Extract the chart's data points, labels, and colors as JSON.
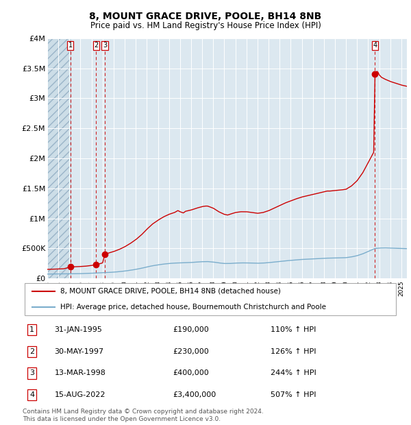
{
  "title": "8, MOUNT GRACE DRIVE, POOLE, BH14 8NB",
  "subtitle": "Price paid vs. HM Land Registry's House Price Index (HPI)",
  "table_rows": [
    {
      "label": "1",
      "date": "31-JAN-1995",
      "price": "£190,000",
      "pct": "110% ↑ HPI"
    },
    {
      "label": "2",
      "date": "30-MAY-1997",
      "price": "£230,000",
      "pct": "126% ↑ HPI"
    },
    {
      "label": "3",
      "date": "13-MAR-1998",
      "price": "£400,000",
      "pct": "244% ↑ HPI"
    },
    {
      "label": "4",
      "date": "15-AUG-2022",
      "price": "£3,400,000",
      "pct": "507% ↑ HPI"
    }
  ],
  "transactions": [
    {
      "year": 1995.083,
      "price": 190000,
      "label": "1"
    },
    {
      "year": 1997.414,
      "price": 230000,
      "label": "2"
    },
    {
      "year": 1998.2,
      "price": 400000,
      "label": "3"
    },
    {
      "year": 2022.62,
      "price": 3400000,
      "label": "4"
    }
  ],
  "property_label": "8, MOUNT GRACE DRIVE, POOLE, BH14 8NB (detached house)",
  "hpi_label": "HPI: Average price, detached house, Bournemouth Christchurch and Poole",
  "footer": "Contains HM Land Registry data © Crown copyright and database right 2024.\nThis data is licensed under the Open Government Licence v3.0.",
  "property_color": "#cc0000",
  "hpi_color": "#7aadcc",
  "bg_color": "#dce8f0",
  "hatch_region_end": 1995.083,
  "ylim": [
    0,
    4000000
  ],
  "ytick_vals": [
    0,
    500000,
    1000000,
    1500000,
    2000000,
    2500000,
    3000000,
    3500000,
    4000000
  ],
  "ytick_labels": [
    "£0",
    "£500K",
    "£1M",
    "£1.5M",
    "£2M",
    "£2.5M",
    "£3M",
    "£3.5M",
    "£4M"
  ],
  "xmin": 1993.0,
  "xmax": 2025.5,
  "hpi_keypoints": [
    [
      1993.0,
      72000
    ],
    [
      1993.5,
      73000
    ],
    [
      1994.0,
      74000
    ],
    [
      1994.5,
      75000
    ],
    [
      1995.0,
      76000
    ],
    [
      1995.5,
      77000
    ],
    [
      1996.0,
      79000
    ],
    [
      1996.5,
      82000
    ],
    [
      1997.0,
      86000
    ],
    [
      1997.5,
      90000
    ],
    [
      1998.0,
      93000
    ],
    [
      1998.5,
      98000
    ],
    [
      1999.0,
      104000
    ],
    [
      1999.5,
      112000
    ],
    [
      2000.0,
      122000
    ],
    [
      2000.5,
      135000
    ],
    [
      2001.0,
      150000
    ],
    [
      2001.5,
      168000
    ],
    [
      2002.0,
      190000
    ],
    [
      2002.5,
      210000
    ],
    [
      2003.0,
      225000
    ],
    [
      2003.5,
      238000
    ],
    [
      2004.0,
      248000
    ],
    [
      2004.5,
      255000
    ],
    [
      2005.0,
      258000
    ],
    [
      2005.5,
      260000
    ],
    [
      2006.0,
      265000
    ],
    [
      2006.5,
      272000
    ],
    [
      2007.0,
      278000
    ],
    [
      2007.5,
      280000
    ],
    [
      2008.0,
      272000
    ],
    [
      2008.5,
      258000
    ],
    [
      2009.0,
      248000
    ],
    [
      2009.5,
      248000
    ],
    [
      2010.0,
      255000
    ],
    [
      2010.5,
      258000
    ],
    [
      2011.0,
      258000
    ],
    [
      2011.5,
      255000
    ],
    [
      2012.0,
      252000
    ],
    [
      2012.5,
      255000
    ],
    [
      2013.0,
      262000
    ],
    [
      2013.5,
      272000
    ],
    [
      2014.0,
      282000
    ],
    [
      2014.5,
      292000
    ],
    [
      2015.0,
      300000
    ],
    [
      2015.5,
      308000
    ],
    [
      2016.0,
      315000
    ],
    [
      2016.5,
      320000
    ],
    [
      2017.0,
      325000
    ],
    [
      2017.5,
      330000
    ],
    [
      2018.0,
      335000
    ],
    [
      2018.5,
      338000
    ],
    [
      2019.0,
      340000
    ],
    [
      2019.5,
      342000
    ],
    [
      2020.0,
      345000
    ],
    [
      2020.5,
      358000
    ],
    [
      2021.0,
      378000
    ],
    [
      2021.5,
      408000
    ],
    [
      2022.0,
      448000
    ],
    [
      2022.5,
      488000
    ],
    [
      2022.62,
      498000
    ],
    [
      2023.0,
      505000
    ],
    [
      2023.5,
      508000
    ],
    [
      2024.0,
      505000
    ],
    [
      2024.5,
      502000
    ],
    [
      2025.0,
      498000
    ],
    [
      2025.5,
      495000
    ]
  ],
  "prop_keypoints_pre1995": [
    [
      1993.0,
      150000
    ],
    [
      1993.5,
      153000
    ],
    [
      1994.0,
      156000
    ],
    [
      1994.5,
      160000
    ],
    [
      1995.083,
      190000
    ]
  ],
  "prop_keypoints_1995_1997": [
    [
      1995.083,
      190000
    ],
    [
      1995.5,
      193000
    ],
    [
      1996.0,
      198000
    ],
    [
      1996.5,
      204000
    ],
    [
      1997.0,
      215000
    ],
    [
      1997.414,
      230000
    ]
  ],
  "prop_keypoints_1997_1998": [
    [
      1997.414,
      230000
    ],
    [
      1997.7,
      242000
    ],
    [
      1998.0,
      258000
    ],
    [
      1998.2,
      400000
    ]
  ],
  "prop_keypoints_1998_2022": [
    [
      1998.2,
      400000
    ],
    [
      1998.5,
      420000
    ],
    [
      1999.0,
      447000
    ],
    [
      1999.5,
      482000
    ],
    [
      2000.0,
      526000
    ],
    [
      2000.5,
      581000
    ],
    [
      2001.0,
      645000
    ],
    [
      2001.5,
      723000
    ],
    [
      2002.0,
      818000
    ],
    [
      2002.5,
      904000
    ],
    [
      2003.0,
      968000
    ],
    [
      2003.5,
      1024000
    ],
    [
      2004.0,
      1067000
    ],
    [
      2004.5,
      1097000
    ],
    [
      2004.8,
      1130000
    ],
    [
      2005.0,
      1110000
    ],
    [
      2005.3,
      1090000
    ],
    [
      2005.5,
      1118000
    ],
    [
      2006.0,
      1139000
    ],
    [
      2006.5,
      1170000
    ],
    [
      2007.0,
      1196000
    ],
    [
      2007.3,
      1205000
    ],
    [
      2007.5,
      1204000
    ],
    [
      2008.0,
      1170000
    ],
    [
      2008.5,
      1110000
    ],
    [
      2009.0,
      1067000
    ],
    [
      2009.3,
      1055000
    ],
    [
      2009.5,
      1068000
    ],
    [
      2010.0,
      1097000
    ],
    [
      2010.5,
      1110000
    ],
    [
      2011.0,
      1110000
    ],
    [
      2011.5,
      1097000
    ],
    [
      2012.0,
      1084000
    ],
    [
      2012.5,
      1097000
    ],
    [
      2013.0,
      1127000
    ],
    [
      2013.5,
      1170000
    ],
    [
      2014.0,
      1213000
    ],
    [
      2014.5,
      1256000
    ],
    [
      2015.0,
      1291000
    ],
    [
      2015.5,
      1325000
    ],
    [
      2016.0,
      1355000
    ],
    [
      2016.5,
      1377000
    ],
    [
      2017.0,
      1398000
    ],
    [
      2017.5,
      1420000
    ],
    [
      2018.0,
      1441000
    ],
    [
      2018.3,
      1455000
    ],
    [
      2018.5,
      1454000
    ],
    [
      2019.0,
      1463000
    ],
    [
      2019.5,
      1472000
    ],
    [
      2020.0,
      1484000
    ],
    [
      2020.5,
      1541000
    ],
    [
      2021.0,
      1627000
    ],
    [
      2021.5,
      1756000
    ],
    [
      2022.0,
      1928000
    ],
    [
      2022.5,
      2100000
    ],
    [
      2022.62,
      3400000
    ]
  ],
  "prop_keypoints_post2022": [
    [
      2022.62,
      3400000
    ],
    [
      2022.8,
      3450000
    ],
    [
      2022.9,
      3430000
    ],
    [
      2023.0,
      3390000
    ],
    [
      2023.2,
      3350000
    ],
    [
      2023.5,
      3320000
    ],
    [
      2024.0,
      3280000
    ],
    [
      2024.5,
      3250000
    ],
    [
      2025.0,
      3220000
    ],
    [
      2025.5,
      3200000
    ]
  ]
}
